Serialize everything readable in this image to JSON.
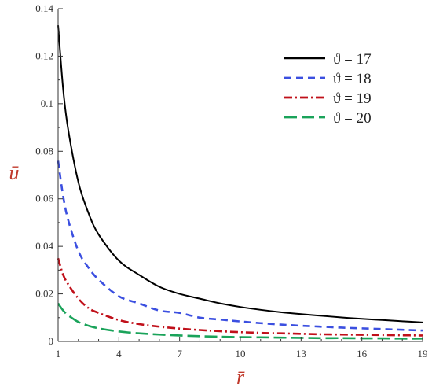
{
  "chart_data": {
    "type": "line",
    "xlabel": "r̄",
    "ylabel": "ū",
    "xlim": [
      1,
      19
    ],
    "ylim": [
      0,
      0.14
    ],
    "x_ticks": [
      "1",
      "4",
      "7",
      "10",
      "13",
      "16",
      "19"
    ],
    "y_ticks": [
      "0",
      "0.02",
      "0.04",
      "0.06",
      "0.08",
      "0.1",
      "0.12",
      "0.14"
    ],
    "grid": false,
    "legend": "top-right",
    "x": [
      1,
      1.25,
      1.5,
      2,
      2.5,
      3,
      4,
      5,
      6,
      7,
      8,
      9,
      10,
      11,
      12,
      13,
      14,
      15,
      16,
      17,
      18,
      19
    ],
    "series": [
      {
        "name": "ϑ = 17",
        "color": "#000000",
        "dash": "solid",
        "values": [
          0.133,
          0.106,
          0.089,
          0.067,
          0.054,
          0.045,
          0.034,
          0.028,
          0.023,
          0.02,
          0.018,
          0.016,
          0.0145,
          0.0133,
          0.0123,
          0.0115,
          0.0108,
          0.0101,
          0.0095,
          0.009,
          0.0085,
          0.008
        ]
      },
      {
        "name": "ϑ = 18",
        "color": "#3b4fe0",
        "dash": "dashed",
        "values": [
          0.076,
          0.061,
          0.051,
          0.038,
          0.031,
          0.026,
          0.019,
          0.016,
          0.013,
          0.012,
          0.01,
          0.0092,
          0.0084,
          0.0077,
          0.0071,
          0.0066,
          0.0062,
          0.0058,
          0.0055,
          0.0052,
          0.0049,
          0.0046
        ]
      },
      {
        "name": "ϑ = 19",
        "color": "#c0101a",
        "dash": "dash-dot",
        "values": [
          0.035,
          0.028,
          0.024,
          0.018,
          0.014,
          0.012,
          0.009,
          0.0073,
          0.0062,
          0.0054,
          0.0048,
          0.0043,
          0.0039,
          0.0036,
          0.0034,
          0.0032,
          0.003,
          0.0029,
          0.0028,
          0.0027,
          0.0026,
          0.0025
        ]
      },
      {
        "name": "ϑ = 20",
        "color": "#1aa35a",
        "dash": "long-dash",
        "values": [
          0.016,
          0.013,
          0.011,
          0.0082,
          0.0066,
          0.0055,
          0.0042,
          0.0034,
          0.0029,
          0.0025,
          0.0022,
          0.002,
          0.0018,
          0.0017,
          0.0016,
          0.0015,
          0.0014,
          0.0014,
          0.0013,
          0.0013,
          0.0012,
          0.0012
        ]
      }
    ]
  }
}
